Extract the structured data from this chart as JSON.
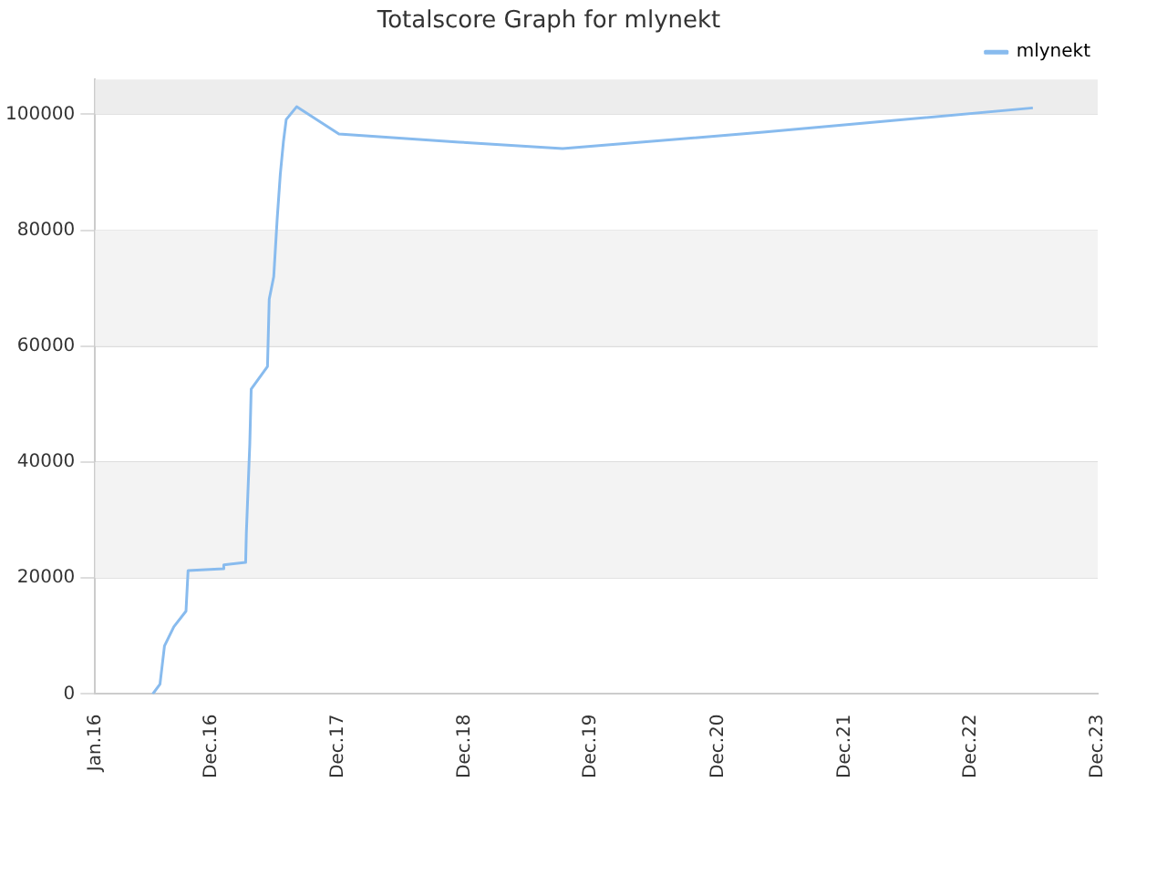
{
  "chart_data": {
    "type": "line",
    "title": "Totalscore Graph for mlynekt",
    "x": [
      "2016-06-15",
      "2016-07-06",
      "2016-07-19",
      "2016-08-15",
      "2016-09-19",
      "2016-09-25",
      "2017-01-04",
      "2017-01-06",
      "2017-03-10",
      "2017-03-12",
      "2017-03-22",
      "2017-03-26",
      "2017-05-12",
      "2017-05-17",
      "2017-05-30",
      "2017-06-09",
      "2017-06-18",
      "2017-06-27",
      "2017-07-05",
      "2017-08-04",
      "2017-12-04",
      "2018-11-16",
      "2019-09-10",
      "2021-04-10",
      "2023-05-28"
    ],
    "series": [
      {
        "name": "mlynekt",
        "color": "#88bbee",
        "values": [
          0,
          1700,
          8300,
          11600,
          14300,
          21300,
          21600,
          22300,
          22700,
          27700,
          43200,
          52600,
          56500,
          68100,
          72000,
          82000,
          89700,
          95300,
          99100,
          101300,
          96600,
          95200,
          94100,
          96900,
          101100
        ]
      }
    ],
    "xlim": [
      "2016-01-01",
      "2023-12-01"
    ],
    "xticks": [
      {
        "value": "2016-01-01",
        "label": "Jan.16"
      },
      {
        "value": "2016-12-01",
        "label": "Dec.16"
      },
      {
        "value": "2017-12-01",
        "label": "Dec.17"
      },
      {
        "value": "2018-12-01",
        "label": "Dec.18"
      },
      {
        "value": "2019-12-01",
        "label": "Dec.19"
      },
      {
        "value": "2020-12-01",
        "label": "Dec.20"
      },
      {
        "value": "2021-12-01",
        "label": "Dec.21"
      },
      {
        "value": "2022-12-01",
        "label": "Dec.22"
      },
      {
        "value": "2023-12-01",
        "label": "Dec.23"
      }
    ],
    "ylim": [
      0,
      106000
    ],
    "yticks": [
      0,
      20000,
      40000,
      60000,
      80000,
      100000
    ],
    "bands": [
      {
        "axis": "y",
        "from": 20000,
        "to": 40000,
        "color": "#f3f3f3"
      },
      {
        "axis": "y",
        "from": 60000,
        "to": 80000,
        "color": "#f3f3f3"
      },
      {
        "axis": "y",
        "from": 100000,
        "to": 106000,
        "color": "#ededed"
      }
    ],
    "grid": "y",
    "legend": "top right",
    "marker": "none",
    "line_style": "solid"
  }
}
